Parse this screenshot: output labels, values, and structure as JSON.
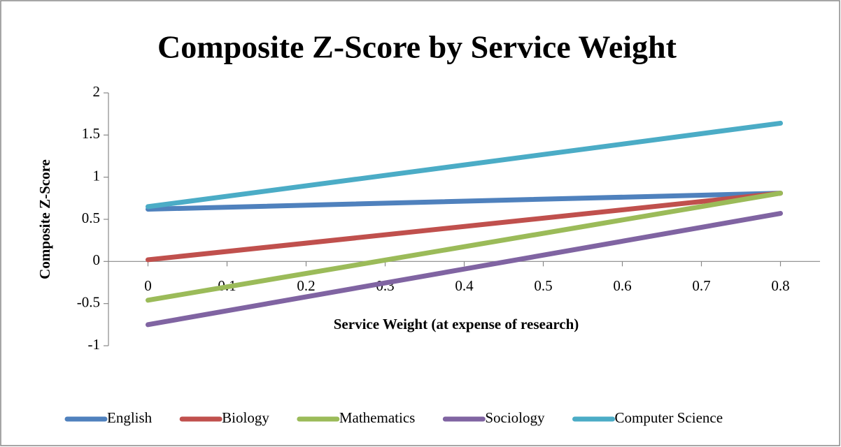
{
  "chart_data": {
    "type": "line",
    "title": "Composite Z-Score by Service Weight",
    "xlabel": "Service Weight (at expense of research)",
    "ylabel": "Composite Z-Score",
    "x": [
      0,
      0.8
    ],
    "series": [
      {
        "name": "English",
        "color": "#4f81bd",
        "values": [
          0.62,
          0.81
        ]
      },
      {
        "name": "Biology",
        "color": "#c0504d",
        "values": [
          0.02,
          0.81
        ]
      },
      {
        "name": "Mathematics",
        "color": "#9bbb59",
        "values": [
          -0.46,
          0.81
        ]
      },
      {
        "name": "Sociology",
        "color": "#8064a2",
        "values": [
          -0.75,
          0.57
        ]
      },
      {
        "name": "Computer Science",
        "color": "#4bacc6",
        "values": [
          0.65,
          1.64
        ]
      }
    ],
    "xlim": [
      -0.05,
      0.85
    ],
    "xticks": [
      0,
      0.1,
      0.2,
      0.3,
      0.4,
      0.5,
      0.6,
      0.7,
      0.8
    ],
    "ylim": [
      -1,
      2
    ],
    "yticks": [
      -1,
      -0.5,
      0,
      0.5,
      1,
      1.5,
      2
    ],
    "legend": "bottom"
  }
}
